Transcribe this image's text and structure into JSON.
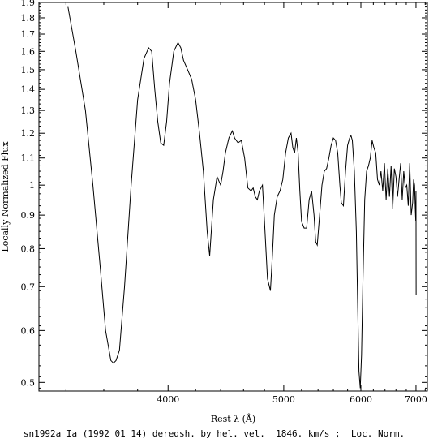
{
  "chart_data": {
    "type": "line",
    "xlabel": "Rest λ (Å)",
    "ylabel": "Locally Normalized Flux",
    "caption": "sn1992a Ia (1992 01 14) deredsh. by hel. vel.  1846. km/s ;  Loc. Norm.",
    "x_scale": "reciprocal",
    "y_scale": "log",
    "xlim": [
      3270,
      7250
    ],
    "ylim": [
      0.485,
      1.9
    ],
    "x_ticks": [
      4000,
      5000,
      6000,
      7000
    ],
    "y_ticks": [
      0.5,
      0.6,
      0.7,
      0.8,
      0.9,
      1,
      1.1,
      1.2,
      1.3,
      1.4,
      1.5,
      1.6,
      1.7,
      1.8,
      1.9
    ],
    "x_tick_labels": [
      "4000",
      "5000",
      "6000",
      "7000"
    ],
    "y_tick_labels": [
      "0.5",
      "0.6",
      "0.7",
      "0.8",
      "0.9",
      "1",
      "1.1",
      "1.2",
      "1.3",
      "1.4",
      "1.5",
      "1.6",
      "1.7",
      "1.8",
      "1.9"
    ],
    "grid": false,
    "series": [
      {
        "color": "#000000",
        "x": [
          3410,
          3450,
          3500,
          3540,
          3580,
          3610,
          3640,
          3655,
          3670,
          3690,
          3720,
          3760,
          3800,
          3840,
          3870,
          3890,
          3910,
          3930,
          3950,
          3970,
          3990,
          4010,
          4040,
          4070,
          4090,
          4110,
          4140,
          4170,
          4200,
          4230,
          4260,
          4290,
          4310,
          4340,
          4370,
          4400,
          4420,
          4440,
          4470,
          4500,
          4520,
          4550,
          4580,
          4610,
          4640,
          4670,
          4690,
          4710,
          4730,
          4750,
          4780,
          4800,
          4830,
          4860,
          4880,
          4900,
          4930,
          4960,
          4990,
          5020,
          5050,
          5080,
          5100,
          5120,
          5140,
          5160,
          5180,
          5200,
          5230,
          5260,
          5290,
          5320,
          5350,
          5370,
          5390,
          5420,
          5450,
          5480,
          5510,
          5540,
          5570,
          5600,
          5630,
          5660,
          5690,
          5710,
          5740,
          5770,
          5800,
          5830,
          5850,
          5870,
          5900,
          5930,
          5950,
          5970,
          5990,
          6010,
          6030,
          6060,
          6090,
          6120,
          6150,
          6180,
          6210,
          6240,
          6270,
          6300,
          6330,
          6360,
          6390,
          6420,
          6450,
          6480,
          6510,
          6540,
          6570,
          6600,
          6630,
          6660,
          6690,
          6720,
          6750,
          6780,
          6810,
          6840,
          6870,
          6900,
          6930,
          6950,
          6970,
          6985,
          6995,
          7000,
          7003
        ],
        "y": [
          1.87,
          1.6,
          1.3,
          1.0,
          0.75,
          0.6,
          0.54,
          0.535,
          0.54,
          0.56,
          0.7,
          1.0,
          1.35,
          1.56,
          1.62,
          1.6,
          1.4,
          1.25,
          1.16,
          1.15,
          1.25,
          1.43,
          1.6,
          1.65,
          1.62,
          1.55,
          1.5,
          1.45,
          1.35,
          1.2,
          1.05,
          0.85,
          0.78,
          0.95,
          1.03,
          1.0,
          1.05,
          1.12,
          1.18,
          1.21,
          1.18,
          1.16,
          1.17,
          1.1,
          0.99,
          0.98,
          0.99,
          0.96,
          0.95,
          0.98,
          1.0,
          0.88,
          0.72,
          0.69,
          0.78,
          0.9,
          0.96,
          0.98,
          1.02,
          1.12,
          1.18,
          1.2,
          1.14,
          1.12,
          1.18,
          1.12,
          0.98,
          0.88,
          0.86,
          0.86,
          0.95,
          0.98,
          0.9,
          0.82,
          0.81,
          0.9,
          1.0,
          1.05,
          1.06,
          1.1,
          1.15,
          1.18,
          1.17,
          1.12,
          1.0,
          0.94,
          0.93,
          1.05,
          1.15,
          1.18,
          1.19,
          1.17,
          1.05,
          0.85,
          0.66,
          0.52,
          0.49,
          0.55,
          0.7,
          0.95,
          1.05,
          1.07,
          1.1,
          1.17,
          1.14,
          1.12,
          1.02,
          1.0,
          1.05,
          0.98,
          1.08,
          0.95,
          1.06,
          0.96,
          1.07,
          0.92,
          1.06,
          1.03,
          0.96,
          1.02,
          1.08,
          0.95,
          1.05,
          0.99,
          1.0,
          0.93,
          1.08,
          0.9,
          0.94,
          1.02,
          1.0,
          0.92,
          0.88,
          0.98,
          0.68
        ]
      }
    ]
  }
}
